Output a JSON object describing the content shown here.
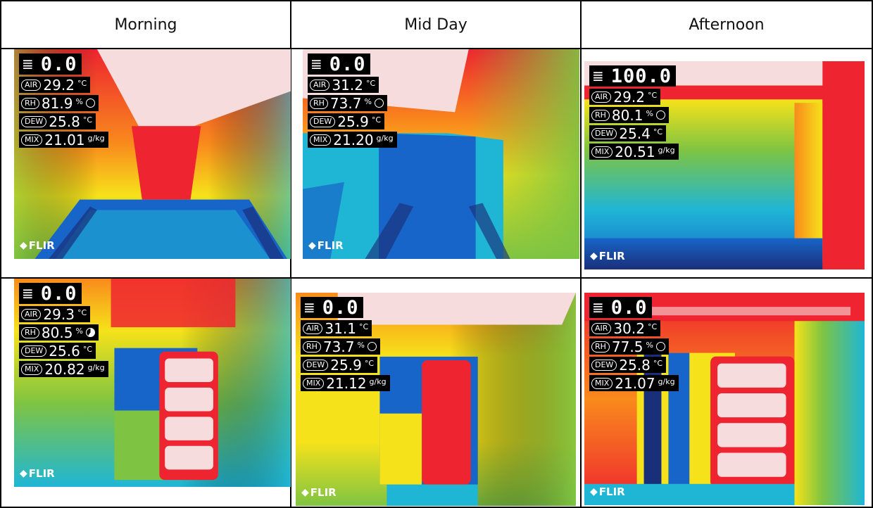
{
  "headers": [
    "Morning",
    "Mid Day",
    "Afternoon"
  ],
  "cells": [
    {
      "top": "0.0",
      "air": "29.2",
      "rh": "81.9",
      "dew": "25.8",
      "mix": "21.01",
      "rh_indicator": "empty",
      "scene": "ceiling",
      "logo": "FLIR"
    },
    {
      "top": "0.0",
      "air": "31.2",
      "rh": "73.7",
      "dew": "25.9",
      "mix": "21.20",
      "rh_indicator": "empty",
      "scene": "corner",
      "logo": "FLIR"
    },
    {
      "top": "100.0",
      "air": "29.2",
      "rh": "80.1",
      "dew": "25.4",
      "mix": "20.51",
      "rh_indicator": "empty",
      "scene": "room",
      "logo": "FLIR"
    },
    {
      "top": "0.0",
      "air": "29.3",
      "rh": "80.5",
      "dew": "25.6",
      "mix": "20.82",
      "rh_indicator": "partial",
      "scene": "window",
      "logo": "FLIR"
    },
    {
      "top": "0.0",
      "air": "31.1",
      "rh": "73.7",
      "dew": "25.9",
      "mix": "21.12",
      "rh_indicator": "empty",
      "scene": "window2",
      "logo": "FLIR"
    },
    {
      "top": "0.0",
      "air": "30.2",
      "rh": "77.5",
      "dew": "25.8",
      "mix": "21.07",
      "rh_indicator": "empty",
      "scene": "doors",
      "logo": "FLIR"
    }
  ],
  "labels": {
    "air": "AIR",
    "rh": "RH",
    "dew": "DEW",
    "mix": "MIX",
    "unit_c": "°C",
    "unit_rh": "%",
    "unit_mix": "g/kg"
  },
  "palette": {
    "white": "#f6dcdc",
    "red": "#ee2430",
    "orange": "#f98a1c",
    "yellow": "#f6e21a",
    "green": "#7ec442",
    "cyan": "#1fb6d6",
    "blue": "#1765c8",
    "navy": "#1a2f7a"
  }
}
